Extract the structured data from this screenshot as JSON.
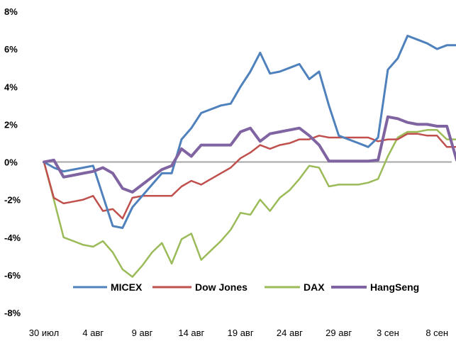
{
  "chart_data": {
    "type": "line",
    "title": "",
    "xlabel": "",
    "ylabel": "",
    "ylim": [
      -8,
      8
    ],
    "yticks": [
      8,
      6,
      4,
      2,
      0,
      -2,
      -4,
      -6,
      -8
    ],
    "ytick_labels": [
      "8%",
      "6%",
      "4%",
      "2%",
      "0%",
      "-2%",
      "-4%",
      "-6%",
      "-8%"
    ],
    "x_tick_labels": [
      "30 июл",
      "4 авг",
      "9 авг",
      "14 авг",
      "19 авг",
      "24 авг",
      "29 авг",
      "3 сен",
      "8 сен"
    ],
    "x_tick_days": [
      0,
      5,
      10,
      15,
      20,
      25,
      30,
      35,
      40
    ],
    "xlim": [
      0,
      41.5
    ],
    "zero_line": true,
    "grid": false,
    "legend_position": "bottom",
    "series": [
      {
        "name": "MICEX",
        "color": "#4F81BD",
        "points": [
          [
            0,
            0
          ],
          [
            1,
            -0.3
          ],
          [
            2,
            -0.5
          ],
          [
            3,
            -0.4
          ],
          [
            4,
            -0.3
          ],
          [
            5,
            -0.2
          ],
          [
            6,
            -1.8
          ],
          [
            7,
            -3.4
          ],
          [
            8,
            -3.5
          ],
          [
            9,
            -2.4
          ],
          [
            10,
            -1.8
          ],
          [
            11,
            -1.2
          ],
          [
            12,
            -0.6
          ],
          [
            13,
            -0.6
          ],
          [
            14,
            1.2
          ],
          [
            15,
            1.8
          ],
          [
            16,
            2.6
          ],
          [
            17,
            2.8
          ],
          [
            18,
            3.0
          ],
          [
            19,
            3.1
          ],
          [
            20,
            4.0
          ],
          [
            21,
            4.8
          ],
          [
            22,
            5.8
          ],
          [
            23,
            4.7
          ],
          [
            24,
            4.8
          ],
          [
            25,
            5.0
          ],
          [
            26,
            5.2
          ],
          [
            27,
            4.4
          ],
          [
            28,
            4.8
          ],
          [
            29,
            3.0
          ],
          [
            30,
            1.4
          ],
          [
            31,
            1.2
          ],
          [
            32,
            1.0
          ],
          [
            33,
            0.8
          ],
          [
            34,
            1.3
          ],
          [
            35,
            4.9
          ],
          [
            36,
            5.5
          ],
          [
            37,
            6.7
          ],
          [
            38,
            6.5
          ],
          [
            39,
            6.3
          ],
          [
            40,
            6.0
          ],
          [
            41,
            6.2
          ],
          [
            42,
            6.2
          ]
        ]
      },
      {
        "name": "Dow Jones",
        "color": "#C0504D",
        "points": [
          [
            0,
            0
          ],
          [
            1,
            -1.9
          ],
          [
            2,
            -2.2
          ],
          [
            3,
            -2.1
          ],
          [
            4,
            -2.0
          ],
          [
            5,
            -1.8
          ],
          [
            6,
            -2.6
          ],
          [
            7,
            -2.5
          ],
          [
            8,
            -3.0
          ],
          [
            9,
            -1.9
          ],
          [
            10,
            -1.8
          ],
          [
            11,
            -1.8
          ],
          [
            12,
            -1.8
          ],
          [
            13,
            -1.8
          ],
          [
            14,
            -1.3
          ],
          [
            15,
            -1.0
          ],
          [
            16,
            -1.2
          ],
          [
            17,
            -0.9
          ],
          [
            18,
            -0.6
          ],
          [
            19,
            -0.3
          ],
          [
            20,
            0.2
          ],
          [
            21,
            0.5
          ],
          [
            22,
            0.9
          ],
          [
            23,
            0.7
          ],
          [
            24,
            0.9
          ],
          [
            25,
            1.0
          ],
          [
            26,
            1.2
          ],
          [
            27,
            1.2
          ],
          [
            28,
            1.4
          ],
          [
            29,
            1.3
          ],
          [
            30,
            1.3
          ],
          [
            31,
            1.3
          ],
          [
            32,
            1.3
          ],
          [
            33,
            1.3
          ],
          [
            34,
            1.1
          ],
          [
            35,
            1.2
          ],
          [
            36,
            1.2
          ],
          [
            37,
            1.5
          ],
          [
            38,
            1.5
          ],
          [
            39,
            1.4
          ],
          [
            40,
            1.4
          ],
          [
            41,
            0.8
          ],
          [
            42,
            0.8
          ]
        ]
      },
      {
        "name": "DAX",
        "color": "#9BBB59",
        "points": [
          [
            0,
            0
          ],
          [
            1,
            -2.0
          ],
          [
            2,
            -4.0
          ],
          [
            3,
            -4.2
          ],
          [
            4,
            -4.4
          ],
          [
            5,
            -4.5
          ],
          [
            6,
            -4.2
          ],
          [
            7,
            -4.8
          ],
          [
            8,
            -5.7
          ],
          [
            9,
            -6.1
          ],
          [
            10,
            -5.5
          ],
          [
            11,
            -4.8
          ],
          [
            12,
            -4.3
          ],
          [
            13,
            -5.4
          ],
          [
            14,
            -4.1
          ],
          [
            15,
            -3.8
          ],
          [
            16,
            -5.2
          ],
          [
            17,
            -4.7
          ],
          [
            18,
            -4.2
          ],
          [
            19,
            -3.6
          ],
          [
            20,
            -2.7
          ],
          [
            21,
            -2.8
          ],
          [
            22,
            -2.0
          ],
          [
            23,
            -2.6
          ],
          [
            24,
            -1.9
          ],
          [
            25,
            -1.5
          ],
          [
            26,
            -0.9
          ],
          [
            27,
            -0.2
          ],
          [
            28,
            -0.3
          ],
          [
            29,
            -1.3
          ],
          [
            30,
            -1.2
          ],
          [
            31,
            -1.2
          ],
          [
            32,
            -1.2
          ],
          [
            33,
            -1.1
          ],
          [
            34,
            -0.9
          ],
          [
            35,
            0.3
          ],
          [
            36,
            1.3
          ],
          [
            37,
            1.6
          ],
          [
            38,
            1.6
          ],
          [
            39,
            1.7
          ],
          [
            40,
            1.7
          ],
          [
            41,
            1.2
          ],
          [
            42,
            1.2
          ]
        ]
      },
      {
        "name": "HangSeng",
        "color": "#8064A2",
        "points": [
          [
            0,
            0
          ],
          [
            1,
            0.1
          ],
          [
            2,
            -0.8
          ],
          [
            3,
            -0.7
          ],
          [
            4,
            -0.6
          ],
          [
            5,
            -0.5
          ],
          [
            6,
            -0.3
          ],
          [
            7,
            -0.6
          ],
          [
            8,
            -1.4
          ],
          [
            9,
            -1.6
          ],
          [
            10,
            -1.2
          ],
          [
            11,
            -0.8
          ],
          [
            12,
            -0.4
          ],
          [
            13,
            -0.2
          ],
          [
            14,
            0.7
          ],
          [
            15,
            0.3
          ],
          [
            16,
            0.9
          ],
          [
            17,
            0.9
          ],
          [
            18,
            0.9
          ],
          [
            19,
            0.9
          ],
          [
            20,
            1.6
          ],
          [
            21,
            1.8
          ],
          [
            22,
            1.1
          ],
          [
            23,
            1.5
          ],
          [
            24,
            1.6
          ],
          [
            25,
            1.7
          ],
          [
            26,
            1.8
          ],
          [
            27,
            1.4
          ],
          [
            28,
            0.9
          ],
          [
            29,
            0.05
          ],
          [
            30,
            0.05
          ],
          [
            31,
            0.05
          ],
          [
            32,
            0.05
          ],
          [
            33,
            0.05
          ],
          [
            34,
            0.1
          ],
          [
            35,
            2.4
          ],
          [
            36,
            2.3
          ],
          [
            37,
            2.1
          ],
          [
            38,
            2.0
          ],
          [
            39,
            2.0
          ],
          [
            40,
            1.9
          ],
          [
            41,
            1.9
          ],
          [
            42,
            0.1
          ]
        ]
      }
    ]
  }
}
